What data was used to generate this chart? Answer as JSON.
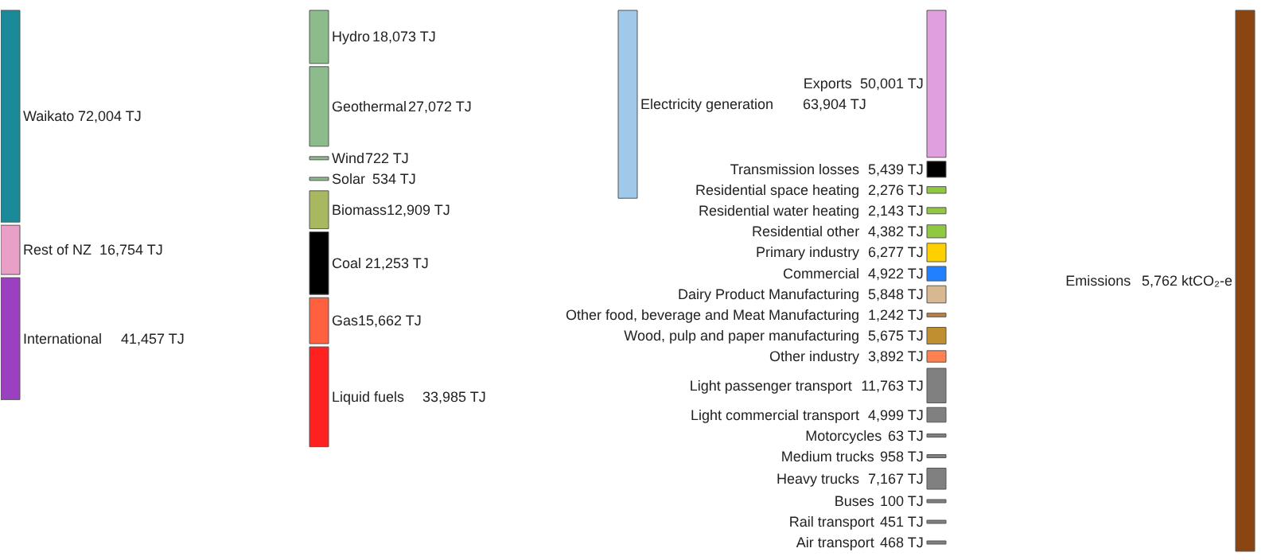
{
  "chart_data": [
    {
      "type": "other",
      "categories": [
        "Waikato",
        "Rest of NZ",
        "International"
      ],
      "values": [
        72004,
        16754,
        41457
      ],
      "value_labels": [
        "72,004 TJ",
        "16,754 TJ",
        "41,457 TJ"
      ],
      "colors": [
        "#1a8a9a",
        "#e8a0c8",
        "#9b40c0"
      ]
    },
    {
      "type": "other",
      "categories": [
        "Hydro",
        "Geothermal",
        "Wind",
        "Solar",
        "Biomass",
        "Coal",
        "Gas",
        "Liquid fuels"
      ],
      "values": [
        18073,
        27072,
        722,
        534,
        12909,
        21253,
        15662,
        33985
      ],
      "value_labels": [
        "18,073 TJ",
        "27,072 TJ",
        "722 TJ",
        "534 TJ",
        "12,909 TJ",
        "21,253 TJ",
        "15,662 TJ",
        "33,985 TJ"
      ],
      "colors": [
        "#8cbc8c",
        "#8cbc8c",
        "#8cbc8c",
        "#8cbc8c",
        "#a8b860",
        "#000000",
        "#ff6040",
        "#ff2020"
      ]
    },
    {
      "type": "other",
      "categories": [
        "Electricity generation"
      ],
      "values": [
        63904
      ],
      "value_labels": [
        "63,904 TJ"
      ],
      "colors": [
        "#a0c8e8"
      ]
    },
    {
      "type": "other",
      "categories": [
        "Exports",
        "Transmission losses",
        "Residential space heating",
        "Residential water heating",
        "Residential other",
        "Primary industry",
        "Commercial",
        "Dairy Product Manufacturing",
        "Other food, beverage and Meat Manufacturing",
        "Wood, pulp and paper manufacturing",
        "Other industry",
        "Light passenger transport",
        "Light commercial transport",
        "Motorcycles",
        "Medium trucks",
        "Heavy trucks",
        "Buses",
        "Rail transport",
        "Air transport"
      ],
      "values": [
        50001,
        5439,
        2276,
        2143,
        4382,
        6277,
        4922,
        5848,
        1242,
        5675,
        3892,
        11763,
        4999,
        63,
        958,
        7167,
        100,
        451,
        468
      ],
      "value_labels": [
        "50,001 TJ",
        "5,439 TJ",
        "2,276 TJ",
        "2,143 TJ",
        "4,382 TJ",
        "6,277 TJ",
        "4,922 TJ",
        "5,848 TJ",
        "1,242 TJ",
        "5,675 TJ",
        "3,892 TJ",
        "11,763 TJ",
        "4,999 TJ",
        "63 TJ",
        "958 TJ",
        "7,167 TJ",
        "100 TJ",
        "451 TJ",
        "468 TJ"
      ],
      "colors": [
        "#e0a0e0",
        "#000000",
        "#90c840",
        "#90c840",
        "#90c840",
        "#ffd000",
        "#2080ff",
        "#d8b890",
        "#c08040",
        "#c09030",
        "#ff8050",
        "#808080",
        "#808080",
        "#808080",
        "#808080",
        "#808080",
        "#808080",
        "#808080",
        "#808080"
      ]
    },
    {
      "type": "other",
      "categories": [
        "Emissions"
      ],
      "values": [
        5762
      ],
      "value_labels": [
        "5,762 ktCO₂-e"
      ],
      "colors": [
        "#8b4513"
      ]
    }
  ]
}
